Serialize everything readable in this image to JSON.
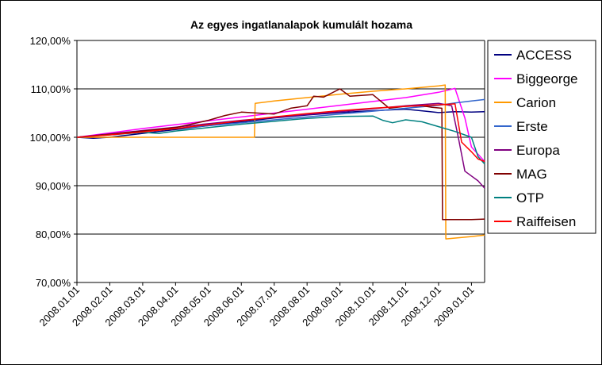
{
  "chart_data": {
    "type": "line",
    "title": "Az egyes ingatlanalapok kumulált hozama",
    "xlabel": "",
    "ylabel": "",
    "ylim": [
      70,
      120
    ],
    "yticks": [
      70,
      80,
      90,
      100,
      110,
      120
    ],
    "ytick_labels": [
      "70,00%",
      "80,00%",
      "90,00%",
      "100,00%",
      "110,00%",
      "120,00%"
    ],
    "xlim": [
      0,
      12.4
    ],
    "xtick_labels": [
      "2008.01.01",
      "2008.02.01",
      "2008.03.01",
      "2008.04.01",
      "2008.05.01",
      "2008.06.01",
      "2008.07.01",
      "2008.08.01",
      "2008.09.01",
      "2008.10.01",
      "2008.11.01",
      "2008.12.01",
      "2009.01.01"
    ],
    "grid": "horizontal",
    "legend": "right",
    "series": [
      {
        "name": "ACCESS",
        "color": "#000080",
        "x": [
          0,
          0.5,
          1,
          2,
          3,
          4,
          5,
          6,
          7,
          8,
          9,
          10,
          10.6,
          11,
          11.5,
          12,
          12.4
        ],
        "y": [
          100,
          99.8,
          100,
          100.8,
          101.6,
          102.4,
          103.2,
          104,
          104.6,
          105.1,
          105.5,
          105.8,
          105.4,
          105.1,
          105.3,
          105.2,
          105.3
        ]
      },
      {
        "name": "Biggeorge",
        "color": "#FF00FF",
        "x": [
          0,
          1,
          2,
          3,
          4,
          5,
          6,
          7,
          8,
          9,
          10,
          11,
          11.5,
          11.8,
          12,
          12.4
        ],
        "y": [
          100,
          100.9,
          101.8,
          102.6,
          103.4,
          104.2,
          105,
          105.8,
          106.6,
          107.4,
          108.2,
          109.3,
          110.1,
          104,
          98,
          95
        ]
      },
      {
        "name": "Carion",
        "color": "#FF9900",
        "x": [
          0,
          1,
          2,
          3,
          4,
          5,
          5.4,
          5.42,
          6,
          7,
          8,
          9,
          10,
          11,
          11.2,
          11.22,
          12,
          12.4
        ],
        "y": [
          100,
          100,
          100,
          100,
          100,
          100,
          100,
          107,
          107.5,
          108.2,
          108.9,
          109.5,
          110,
          110.6,
          110.8,
          79,
          79.5,
          79.8
        ]
      },
      {
        "name": "Erste",
        "color": "#3366CC",
        "x": [
          0,
          1,
          2,
          3,
          4,
          5,
          6,
          7,
          8,
          9,
          10,
          11,
          11.5,
          12,
          12.4
        ],
        "y": [
          100,
          100.6,
          101.2,
          101.8,
          102.4,
          103,
          103.6,
          104.2,
          104.8,
          105.4,
          106,
          106.6,
          107.1,
          107.5,
          107.8
        ]
      },
      {
        "name": "Europa",
        "color": "#800080",
        "x": [
          0,
          1,
          2,
          3,
          4,
          5,
          6,
          7,
          8,
          9,
          10,
          11,
          11.4,
          11.6,
          11.8,
          12,
          12.2,
          12.4
        ],
        "y": [
          100,
          100.7,
          101.4,
          102.1,
          102.8,
          103.5,
          104.1,
          104.7,
          105.3,
          105.9,
          106.5,
          107,
          106.5,
          100,
          93,
          92,
          91,
          89.5
        ]
      },
      {
        "name": "MAG",
        "color": "#800000",
        "x": [
          0,
          1,
          2,
          3,
          4,
          4.5,
          5,
          6,
          6.5,
          7,
          7.2,
          7.5,
          8,
          8.3,
          9,
          9.5,
          10,
          10.5,
          10.8,
          11.1,
          11.12,
          12,
          12.4
        ],
        "y": [
          100,
          100.6,
          101.3,
          102,
          103.5,
          104.5,
          105.2,
          104.8,
          106,
          106.5,
          108.5,
          108.3,
          110,
          108.5,
          108.8,
          106,
          106.4,
          106.5,
          106.2,
          106,
          83,
          83,
          83.1
        ]
      },
      {
        "name": "OTP",
        "color": "#008080",
        "x": [
          0,
          1,
          2,
          2.5,
          3,
          4,
          5,
          6,
          7,
          8,
          9,
          9.3,
          9.6,
          10,
          10.5,
          11,
          11.5,
          12,
          12.2,
          12.4
        ],
        "y": [
          100,
          100.5,
          101,
          100.8,
          101.3,
          102,
          102.7,
          103.3,
          103.9,
          104.3,
          104.4,
          103.5,
          103,
          103.6,
          103.2,
          102.2,
          101.2,
          100,
          96,
          94.5
        ]
      },
      {
        "name": "Raiffeisen",
        "color": "#FF0000",
        "x": [
          0,
          1,
          2,
          3,
          4,
          5,
          6,
          7,
          8,
          9,
          10,
          11,
          11.5,
          11.7,
          12,
          12.2,
          12.4
        ],
        "y": [
          100,
          100.5,
          101.1,
          101.8,
          102.6,
          103.4,
          104.2,
          104.9,
          105.5,
          106,
          106.4,
          106.7,
          106.9,
          99,
          97,
          95.5,
          95
        ]
      }
    ]
  }
}
